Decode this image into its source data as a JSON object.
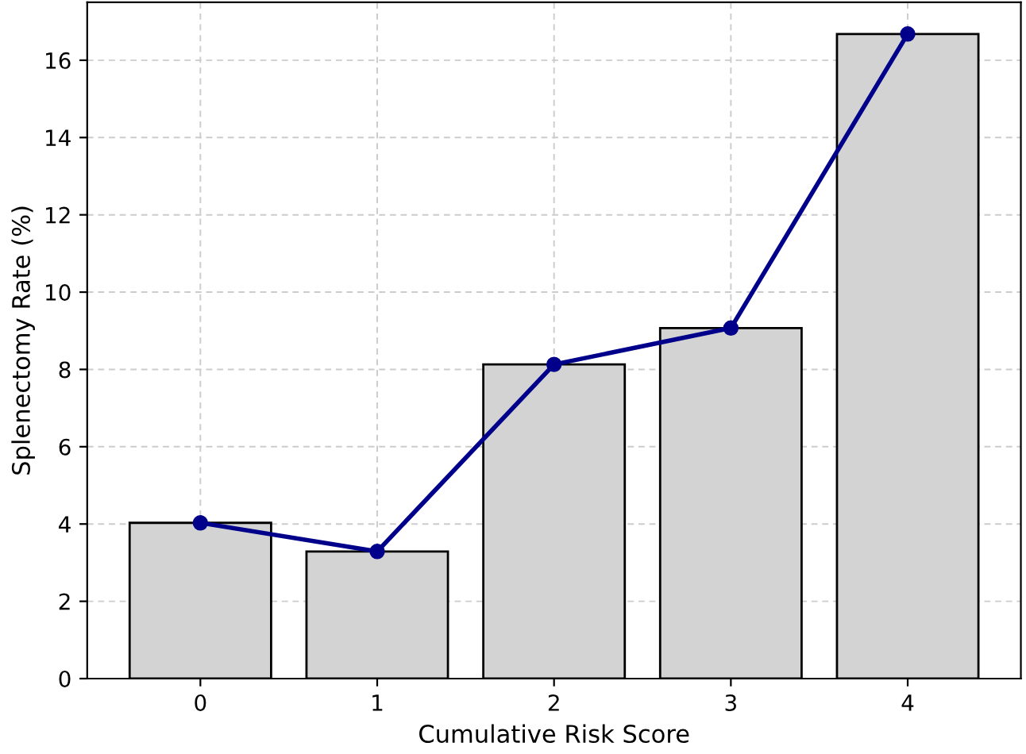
{
  "chart_data": {
    "type": "bar",
    "xlabel": "Cumulative Risk Score",
    "ylabel": "Splenectomy Rate (%)",
    "categories": [
      "0",
      "1",
      "2",
      "3",
      "4"
    ],
    "series": [
      {
        "color": "#d3d3d3",
        "values": [
          4.03,
          3.29,
          8.13,
          9.07,
          16.68
        ]
      },
      {
        "type": "line",
        "color": "#00008b",
        "values": [
          4.03,
          3.29,
          8.13,
          9.07,
          16.68
        ],
        "marker": "circle",
        "line_style": "solid"
      }
    ],
    "ylim": [
      0,
      17.5
    ],
    "yticks": [
      0,
      2,
      4,
      6,
      8,
      10,
      12,
      14,
      16
    ],
    "grid": true,
    "legend": false
  }
}
